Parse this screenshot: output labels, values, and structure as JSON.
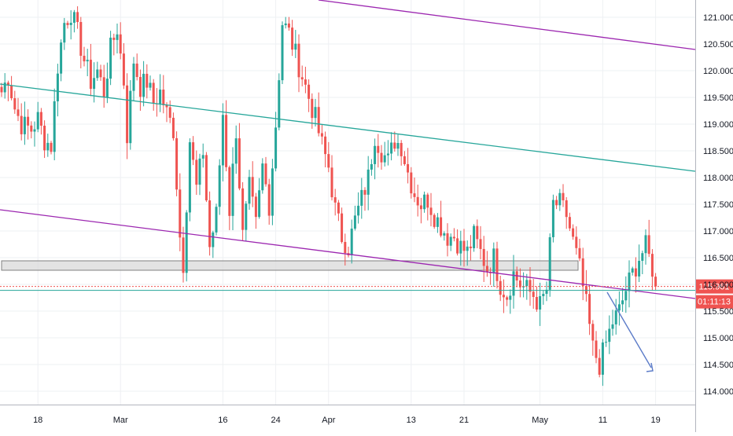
{
  "chart_data": {
    "type": "candlestick",
    "title": "",
    "xlabel": "",
    "ylabel": "",
    "ylim": [
      113.75,
      121.35
    ],
    "grid": true,
    "y_ticks": [
      "114.000",
      "114.500",
      "115.000",
      "115.500",
      "116.000",
      "116.500",
      "117.000",
      "117.500",
      "118.000",
      "118.500",
      "119.000",
      "119.500",
      "120.000",
      "120.500",
      "121.000"
    ],
    "y_tick_values": [
      114.0,
      114.5,
      115.0,
      115.5,
      116.0,
      116.5,
      117.0,
      117.5,
      118.0,
      118.5,
      119.0,
      119.5,
      120.0,
      120.5,
      121.0
    ],
    "x_ticks": [
      {
        "label": "18",
        "bar": 11
      },
      {
        "label": "Mar",
        "bar": 36
      },
      {
        "label": "16",
        "bar": 67
      },
      {
        "label": "24",
        "bar": 83
      },
      {
        "label": "Apr",
        "bar": 99
      },
      {
        "label": "13",
        "bar": 124
      },
      {
        "label": "21",
        "bar": 140
      },
      {
        "label": "May",
        "bar": 163
      },
      {
        "label": "11",
        "bar": 182
      },
      {
        "label": "19",
        "bar": 198
      }
    ],
    "last_price": {
      "value": 115.961,
      "label": "115.961",
      "countdown": "01:11:13",
      "color": "#ef5350"
    },
    "candle_colors": {
      "up": "#26a69a",
      "down": "#ef5350"
    },
    "price_path": [
      [
        0,
        119.6
      ],
      [
        2,
        119.9
      ],
      [
        4,
        119.3
      ],
      [
        6,
        119.0
      ],
      [
        9,
        118.9
      ],
      [
        11,
        119.1
      ],
      [
        13,
        118.7
      ],
      [
        15,
        118.6
      ],
      [
        17,
        120.1
      ],
      [
        19,
        120.9
      ],
      [
        21,
        121.1
      ],
      [
        23,
        120.7
      ],
      [
        25,
        120.2
      ],
      [
        27,
        119.8
      ],
      [
        29,
        120.0
      ],
      [
        31,
        119.6
      ],
      [
        33,
        120.4
      ],
      [
        35,
        120.8
      ],
      [
        37,
        119.8
      ],
      [
        38,
        118.8
      ],
      [
        40,
        120.2
      ],
      [
        42,
        119.7
      ],
      [
        44,
        119.8
      ],
      [
        46,
        119.4
      ],
      [
        48,
        119.6
      ],
      [
        50,
        119.2
      ],
      [
        52,
        118.9
      ],
      [
        54,
        116.9
      ],
      [
        55,
        116.4
      ],
      [
        57,
        118.7
      ],
      [
        59,
        117.8
      ],
      [
        61,
        118.5
      ],
      [
        63,
        116.7
      ],
      [
        65,
        117.3
      ],
      [
        67,
        119.2
      ],
      [
        69,
        117.4
      ],
      [
        71,
        118.9
      ],
      [
        73,
        116.9
      ],
      [
        75,
        117.8
      ],
      [
        77,
        117.1
      ],
      [
        79,
        118.2
      ],
      [
        81,
        117.5
      ],
      [
        83,
        119.0
      ],
      [
        85,
        120.9
      ],
      [
        87,
        120.7
      ],
      [
        89,
        120.3
      ],
      [
        91,
        119.9
      ],
      [
        93,
        119.5
      ],
      [
        95,
        119.1
      ],
      [
        97,
        118.6
      ],
      [
        99,
        118.2
      ],
      [
        101,
        117.4
      ],
      [
        103,
        116.9
      ],
      [
        105,
        116.7
      ],
      [
        107,
        117.2
      ],
      [
        109,
        117.6
      ],
      [
        111,
        118.0
      ],
      [
        113,
        118.8
      ],
      [
        115,
        118.5
      ],
      [
        117,
        118.3
      ],
      [
        119,
        118.7
      ],
      [
        121,
        118.6
      ],
      [
        123,
        118.1
      ],
      [
        125,
        117.7
      ],
      [
        127,
        117.5
      ],
      [
        129,
        117.6
      ],
      [
        131,
        117.3
      ],
      [
        133,
        117.1
      ],
      [
        135,
        116.9
      ],
      [
        137,
        116.9
      ],
      [
        139,
        116.7
      ],
      [
        141,
        116.6
      ],
      [
        143,
        116.9
      ],
      [
        145,
        116.6
      ],
      [
        147,
        116.3
      ],
      [
        149,
        116.5
      ],
      [
        151,
        116.0
      ],
      [
        153,
        115.8
      ],
      [
        155,
        116.2
      ],
      [
        157,
        116.0
      ],
      [
        159,
        115.9
      ],
      [
        161,
        115.8
      ],
      [
        163,
        115.6
      ],
      [
        165,
        115.9
      ],
      [
        167,
        117.5
      ],
      [
        169,
        117.5
      ],
      [
        171,
        117.3
      ],
      [
        173,
        116.8
      ],
      [
        175,
        116.3
      ],
      [
        177,
        115.6
      ],
      [
        179,
        114.8
      ],
      [
        181,
        114.5
      ],
      [
        183,
        114.9
      ],
      [
        185,
        115.3
      ],
      [
        187,
        115.5
      ],
      [
        189,
        115.9
      ],
      [
        191,
        116.2
      ],
      [
        193,
        116.5
      ],
      [
        195,
        116.7
      ],
      [
        197,
        116.3
      ],
      [
        198,
        115.96
      ]
    ],
    "n_bars": 199
  }
}
